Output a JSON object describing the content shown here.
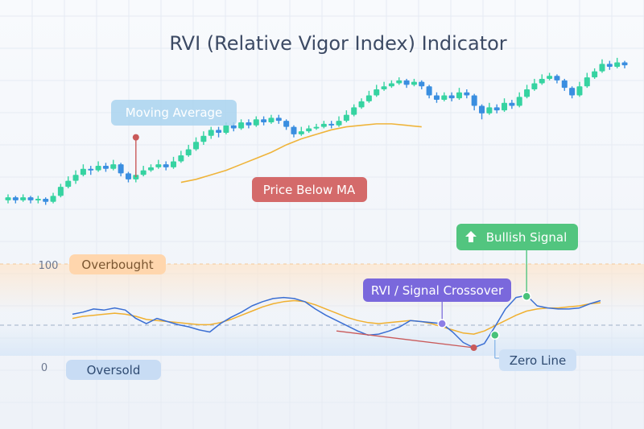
{
  "title": "RVI (Relative Vigor Index) Indicator",
  "colors": {
    "bull_candle": "#36d3a1",
    "bear_candle": "#3a8ee0",
    "moving_average": "#efb43a",
    "rvi_line": "#3b6fd3",
    "signal_line": "#f0b030",
    "overbought_fill": "#ffd8ae",
    "oversold_fill": "#c8dcf4",
    "price_below_ma": "#c95a5a",
    "bullish_signal": "#48c27a",
    "crossover": "#7463d8",
    "zero_line": "#c9dcf4"
  },
  "annotations": {
    "moving_average": "Moving Average",
    "price_below_ma": "Price Below MA",
    "bullish_signal": "Bullish Signal",
    "crossover": "RVI / Signal Crossover",
    "zero_line": "Zero Line",
    "overbought": "Overbought",
    "oversold": "Oversold"
  },
  "chart_data": [
    {
      "type": "candlestick",
      "title": "RVI (Relative Vigor Index) Indicator",
      "ylim": [
        0,
        100
      ],
      "candles": [
        {
          "o": 14,
          "c": 16,
          "h": 18,
          "l": 12
        },
        {
          "o": 16,
          "c": 14,
          "h": 17,
          "l": 12
        },
        {
          "o": 14,
          "c": 16,
          "h": 18,
          "l": 13
        },
        {
          "o": 16,
          "c": 14,
          "h": 17,
          "l": 12
        },
        {
          "o": 14,
          "c": 15,
          "h": 17,
          "l": 12
        },
        {
          "o": 15,
          "c": 13,
          "h": 16,
          "l": 11
        },
        {
          "o": 13,
          "c": 17,
          "h": 19,
          "l": 12
        },
        {
          "o": 17,
          "c": 23,
          "h": 25,
          "l": 16
        },
        {
          "o": 23,
          "c": 27,
          "h": 30,
          "l": 22
        },
        {
          "o": 27,
          "c": 31,
          "h": 34,
          "l": 25
        },
        {
          "o": 31,
          "c": 35,
          "h": 38,
          "l": 30
        },
        {
          "o": 35,
          "c": 34,
          "h": 37,
          "l": 31
        },
        {
          "o": 34,
          "c": 37,
          "h": 40,
          "l": 33
        },
        {
          "o": 37,
          "c": 35,
          "h": 39,
          "l": 33
        },
        {
          "o": 35,
          "c": 38,
          "h": 41,
          "l": 34
        },
        {
          "o": 38,
          "c": 32,
          "h": 39,
          "l": 30
        },
        {
          "o": 32,
          "c": 28,
          "h": 33,
          "l": 26
        },
        {
          "o": 28,
          "c": 31,
          "h": 33,
          "l": 26
        },
        {
          "o": 31,
          "c": 34,
          "h": 37,
          "l": 30
        },
        {
          "o": 34,
          "c": 36,
          "h": 38,
          "l": 33
        },
        {
          "o": 36,
          "c": 38,
          "h": 41,
          "l": 35
        },
        {
          "o": 38,
          "c": 36,
          "h": 40,
          "l": 34
        },
        {
          "o": 36,
          "c": 40,
          "h": 43,
          "l": 35
        },
        {
          "o": 40,
          "c": 44,
          "h": 47,
          "l": 39
        },
        {
          "o": 44,
          "c": 48,
          "h": 51,
          "l": 43
        },
        {
          "o": 48,
          "c": 53,
          "h": 56,
          "l": 47
        },
        {
          "o": 53,
          "c": 57,
          "h": 60,
          "l": 51
        },
        {
          "o": 57,
          "c": 61,
          "h": 63,
          "l": 55
        },
        {
          "o": 61,
          "c": 59,
          "h": 63,
          "l": 56
        },
        {
          "o": 59,
          "c": 64,
          "h": 66,
          "l": 58
        },
        {
          "o": 64,
          "c": 62,
          "h": 66,
          "l": 60
        },
        {
          "o": 62,
          "c": 66,
          "h": 68,
          "l": 61
        },
        {
          "o": 66,
          "c": 64,
          "h": 68,
          "l": 62
        },
        {
          "o": 64,
          "c": 68,
          "h": 70,
          "l": 63
        },
        {
          "o": 68,
          "c": 66,
          "h": 70,
          "l": 64
        },
        {
          "o": 66,
          "c": 69,
          "h": 71,
          "l": 65
        },
        {
          "o": 69,
          "c": 67,
          "h": 71,
          "l": 65
        },
        {
          "o": 67,
          "c": 63,
          "h": 68,
          "l": 61
        },
        {
          "o": 63,
          "c": 58,
          "h": 64,
          "l": 56
        },
        {
          "o": 58,
          "c": 60,
          "h": 63,
          "l": 57
        },
        {
          "o": 60,
          "c": 62,
          "h": 64,
          "l": 59
        },
        {
          "o": 62,
          "c": 63,
          "h": 65,
          "l": 61
        },
        {
          "o": 63,
          "c": 65,
          "h": 67,
          "l": 62
        },
        {
          "o": 65,
          "c": 64,
          "h": 67,
          "l": 62
        },
        {
          "o": 64,
          "c": 67,
          "h": 70,
          "l": 63
        },
        {
          "o": 67,
          "c": 71,
          "h": 74,
          "l": 66
        },
        {
          "o": 71,
          "c": 76,
          "h": 78,
          "l": 70
        },
        {
          "o": 76,
          "c": 80,
          "h": 82,
          "l": 75
        },
        {
          "o": 80,
          "c": 84,
          "h": 87,
          "l": 79
        },
        {
          "o": 84,
          "c": 88,
          "h": 91,
          "l": 83
        },
        {
          "o": 88,
          "c": 90,
          "h": 93,
          "l": 87
        },
        {
          "o": 90,
          "c": 92,
          "h": 94,
          "l": 89
        },
        {
          "o": 92,
          "c": 94,
          "h": 96,
          "l": 91
        },
        {
          "o": 94,
          "c": 91,
          "h": 95,
          "l": 89
        },
        {
          "o": 91,
          "c": 93,
          "h": 95,
          "l": 90
        },
        {
          "o": 93,
          "c": 90,
          "h": 94,
          "l": 88
        },
        {
          "o": 90,
          "c": 84,
          "h": 91,
          "l": 82
        },
        {
          "o": 84,
          "c": 81,
          "h": 86,
          "l": 79
        },
        {
          "o": 81,
          "c": 84,
          "h": 86,
          "l": 80
        },
        {
          "o": 84,
          "c": 82,
          "h": 86,
          "l": 80
        },
        {
          "o": 82,
          "c": 86,
          "h": 89,
          "l": 81
        },
        {
          "o": 86,
          "c": 84,
          "h": 88,
          "l": 82
        },
        {
          "o": 84,
          "c": 77,
          "h": 85,
          "l": 74
        },
        {
          "o": 77,
          "c": 72,
          "h": 78,
          "l": 68
        },
        {
          "o": 72,
          "c": 76,
          "h": 79,
          "l": 71
        },
        {
          "o": 76,
          "c": 74,
          "h": 78,
          "l": 72
        },
        {
          "o": 74,
          "c": 79,
          "h": 82,
          "l": 73
        },
        {
          "o": 79,
          "c": 77,
          "h": 81,
          "l": 75
        },
        {
          "o": 77,
          "c": 83,
          "h": 86,
          "l": 76
        },
        {
          "o": 83,
          "c": 88,
          "h": 91,
          "l": 82
        },
        {
          "o": 88,
          "c": 92,
          "h": 95,
          "l": 87
        },
        {
          "o": 92,
          "c": 95,
          "h": 98,
          "l": 91
        },
        {
          "o": 95,
          "c": 97,
          "h": 99,
          "l": 94
        },
        {
          "o": 97,
          "c": 94,
          "h": 98,
          "l": 92
        },
        {
          "o": 94,
          "c": 89,
          "h": 95,
          "l": 87
        },
        {
          "o": 89,
          "c": 84,
          "h": 90,
          "l": 82
        },
        {
          "o": 84,
          "c": 90,
          "h": 93,
          "l": 83
        },
        {
          "o": 90,
          "c": 96,
          "h": 99,
          "l": 89
        },
        {
          "o": 96,
          "c": 100,
          "h": 102,
          "l": 95
        },
        {
          "o": 100,
          "c": 105,
          "h": 108,
          "l": 99
        },
        {
          "o": 105,
          "c": 103,
          "h": 107,
          "l": 101
        },
        {
          "o": 103,
          "c": 106,
          "h": 109,
          "l": 102
        },
        {
          "o": 106,
          "c": 104,
          "h": 107,
          "l": 102
        }
      ],
      "moving_average": [
        [
          23,
          26
        ],
        [
          25,
          28
        ],
        [
          27,
          31
        ],
        [
          29,
          34
        ],
        [
          31,
          38
        ],
        [
          33,
          42
        ],
        [
          35,
          46
        ],
        [
          37,
          51
        ],
        [
          39,
          55
        ],
        [
          41,
          58
        ],
        [
          43,
          61
        ],
        [
          45,
          63
        ],
        [
          47,
          64
        ],
        [
          49,
          65
        ],
        [
          51,
          65
        ],
        [
          53,
          64
        ],
        [
          55,
          63
        ]
      ]
    },
    {
      "type": "line",
      "ylim": [
        0,
        100
      ],
      "yticks": [
        "100",
        "0"
      ],
      "series": [
        {
          "values": [
            52,
            54,
            57,
            56,
            58,
            56,
            48,
            43,
            48,
            45,
            42,
            40,
            37,
            35,
            43,
            49,
            54,
            60,
            64,
            67,
            68,
            67,
            64,
            57,
            51,
            46,
            41,
            36,
            32,
            33,
            36,
            40,
            46,
            45,
            44,
            43,
            35,
            25,
            20,
            24,
            40,
            57,
            68,
            70,
            60,
            58,
            57,
            57,
            58,
            62,
            65
          ]
        },
        {
          "values": [
            48,
            50,
            51,
            52,
            53,
            52,
            50,
            47,
            46,
            45,
            44,
            43,
            42,
            42,
            44,
            47,
            51,
            55,
            59,
            62,
            64,
            65,
            64,
            61,
            57,
            53,
            49,
            46,
            44,
            43,
            44,
            45,
            46,
            45,
            43,
            40,
            37,
            34,
            33,
            36,
            41,
            46,
            51,
            55,
            57,
            58,
            58,
            59,
            60,
            62,
            63
          ]
        }
      ],
      "markers": [
        {
          "label": "Price Below MA",
          "x": 17,
          "y": 12
        },
        {
          "label": "RVI / Signal Crossover",
          "x": 26,
          "y": 43
        },
        {
          "label": "Zero Line",
          "x": 31,
          "y": 28
        },
        {
          "label": "Bullish Signal",
          "x": 33,
          "y": 70
        }
      ]
    }
  ]
}
